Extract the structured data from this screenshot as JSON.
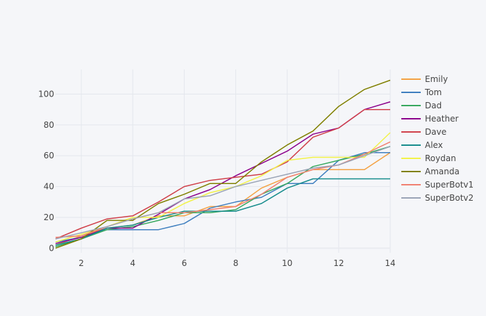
{
  "chart_data": {
    "type": "line",
    "x": [
      1,
      2,
      3,
      4,
      5,
      6,
      7,
      8,
      9,
      10,
      11,
      12,
      13,
      14
    ],
    "xlim": [
      1,
      14
    ],
    "ylim": [
      -3,
      116
    ],
    "xticks": [
      2,
      4,
      6,
      8,
      10,
      12,
      14
    ],
    "yticks": [
      0,
      20,
      40,
      60,
      80,
      100
    ],
    "grid": true,
    "legend_position": "right",
    "series": [
      {
        "name": "Emily",
        "color": "#f4a142",
        "values": [
          2,
          8,
          13,
          15,
          21,
          21,
          27,
          27,
          39,
          46,
          51,
          51,
          51,
          62
        ]
      },
      {
        "name": "Tom",
        "color": "#3f7fbf",
        "values": [
          4,
          7,
          12,
          12,
          12,
          16,
          26,
          30,
          33,
          42,
          42,
          57,
          62,
          62
        ]
      },
      {
        "name": "Dad",
        "color": "#37a85e",
        "values": [
          1,
          6,
          12,
          14,
          18,
          23,
          23,
          25,
          35,
          42,
          53,
          57,
          61,
          66
        ]
      },
      {
        "name": "Heather",
        "color": "#8b008b",
        "values": [
          3,
          7,
          13,
          13,
          22,
          32,
          38,
          47,
          55,
          63,
          74,
          78,
          90,
          95
        ]
      },
      {
        "name": "Dave",
        "color": "#d0404a",
        "values": [
          6,
          13,
          19,
          21,
          30,
          40,
          44,
          46,
          48,
          56,
          72,
          78,
          90,
          90
        ]
      },
      {
        "name": "Alex",
        "color": "#168c8c",
        "values": [
          2,
          6,
          13,
          15,
          20,
          24,
          24,
          24,
          29,
          39,
          45,
          45,
          45,
          45
        ]
      },
      {
        "name": "Roydan",
        "color": "#f2f248",
        "values": [
          4,
          9,
          14,
          20,
          20,
          29,
          36,
          40,
          47,
          57,
          59,
          59,
          59,
          75
        ]
      },
      {
        "name": "Amanda",
        "color": "#808000",
        "values": [
          0,
          6,
          18,
          18,
          29,
          35,
          42,
          42,
          56,
          67,
          76,
          92,
          103,
          109
        ]
      },
      {
        "name": "SuperBotv1",
        "color": "#f08070",
        "values": [
          7,
          8,
          14,
          19,
          23,
          23,
          25,
          27,
          35,
          46,
          51,
          54,
          61,
          69
        ]
      },
      {
        "name": "SuperBotv2",
        "color": "#9aa4b6",
        "values": [
          6,
          10,
          14,
          19,
          23,
          32,
          34,
          40,
          44,
          48,
          52,
          54,
          60,
          66
        ]
      }
    ]
  }
}
